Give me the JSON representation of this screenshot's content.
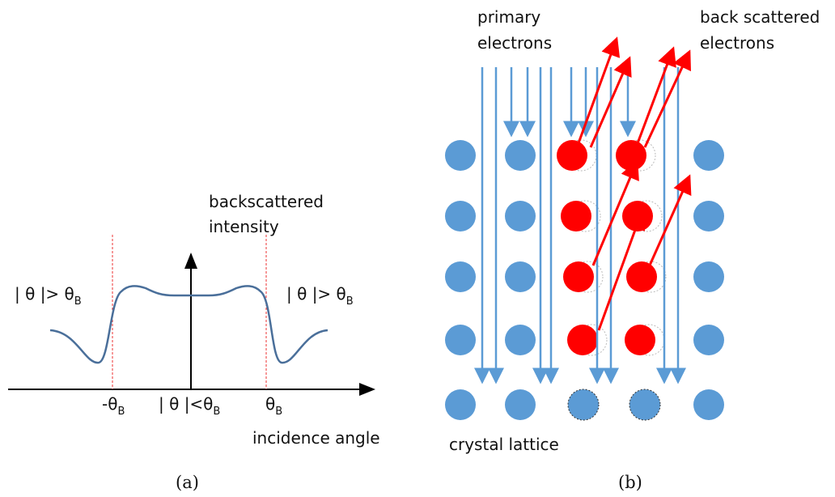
{
  "panel_a": {
    "y_label": [
      "backscattered",
      "intensity"
    ],
    "left_region": {
      "text": "| θ |> θ",
      "sub": "B"
    },
    "right_region": {
      "text": "| θ |> θ",
      "sub": "B"
    },
    "neg_bragg": {
      "text": "-θ",
      "sub": "B"
    },
    "center_region": {
      "text": "| θ |<θ",
      "sub": "B"
    },
    "pos_bragg": {
      "text": "θ",
      "sub": "B"
    },
    "x_label": "incidence angle",
    "caption": "(a)"
  },
  "panel_b": {
    "primary_label": [
      "primary",
      "electrons"
    ],
    "scattered_label": [
      "back scattered",
      "electrons"
    ],
    "lattice_label": "crystal lattice",
    "caption": "(b)"
  }
}
